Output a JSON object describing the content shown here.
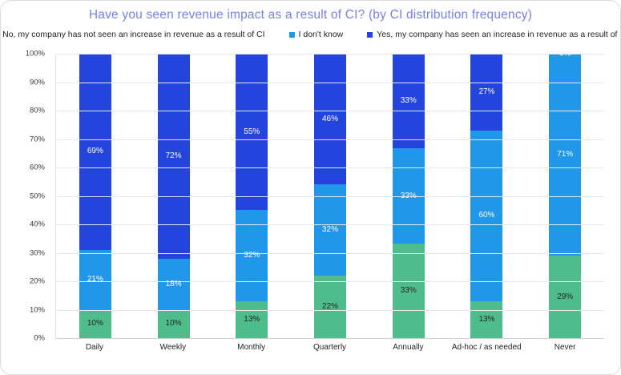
{
  "title": "Have you seen revenue impact as a result of CI? (by CI distribution frequency)",
  "colors": {
    "title": "#7583e3",
    "series_green": "#4fbc8c",
    "series_lightblue": "#2097e8",
    "series_darkblue": "#2444de",
    "label_on_green": "#252423",
    "label_on_blue": "#ffffff",
    "gridline": "#e9e9e9",
    "axis_text": "#3a3a3a"
  },
  "chart_data": {
    "type": "bar",
    "stacked": true,
    "title": "Have you seen revenue impact as a result of CI? (by CI distribution frequency)",
    "xlabel": "",
    "ylabel": "",
    "ylim": [
      0,
      100
    ],
    "grid": true,
    "legend_position": "top",
    "y_ticks": [
      "100%",
      "90%",
      "80%",
      "70%",
      "60%",
      "50%",
      "40%",
      "30%",
      "20%",
      "10%",
      "0%"
    ],
    "categories": [
      "Daily",
      "Weekly",
      "Monthly",
      "Quarterly",
      "Annually",
      "Ad-hoc / as needed",
      "Never"
    ],
    "series": [
      {
        "name": "No, my company has not seen an increase in revenue as a result of CI",
        "color_key": "series_green",
        "label_color_key": "label_on_green",
        "values": [
          10,
          10,
          13,
          22,
          33,
          13,
          29
        ]
      },
      {
        "name": "I don't know",
        "color_key": "series_lightblue",
        "label_color_key": "label_on_blue",
        "values": [
          21,
          18,
          32,
          32,
          33,
          60,
          71
        ]
      },
      {
        "name": "Yes, my company has seen an increase in revenue as a result of CI",
        "color_key": "series_darkblue",
        "label_color_key": "label_on_blue",
        "values": [
          69,
          72,
          55,
          46,
          33,
          27,
          0
        ]
      }
    ]
  }
}
